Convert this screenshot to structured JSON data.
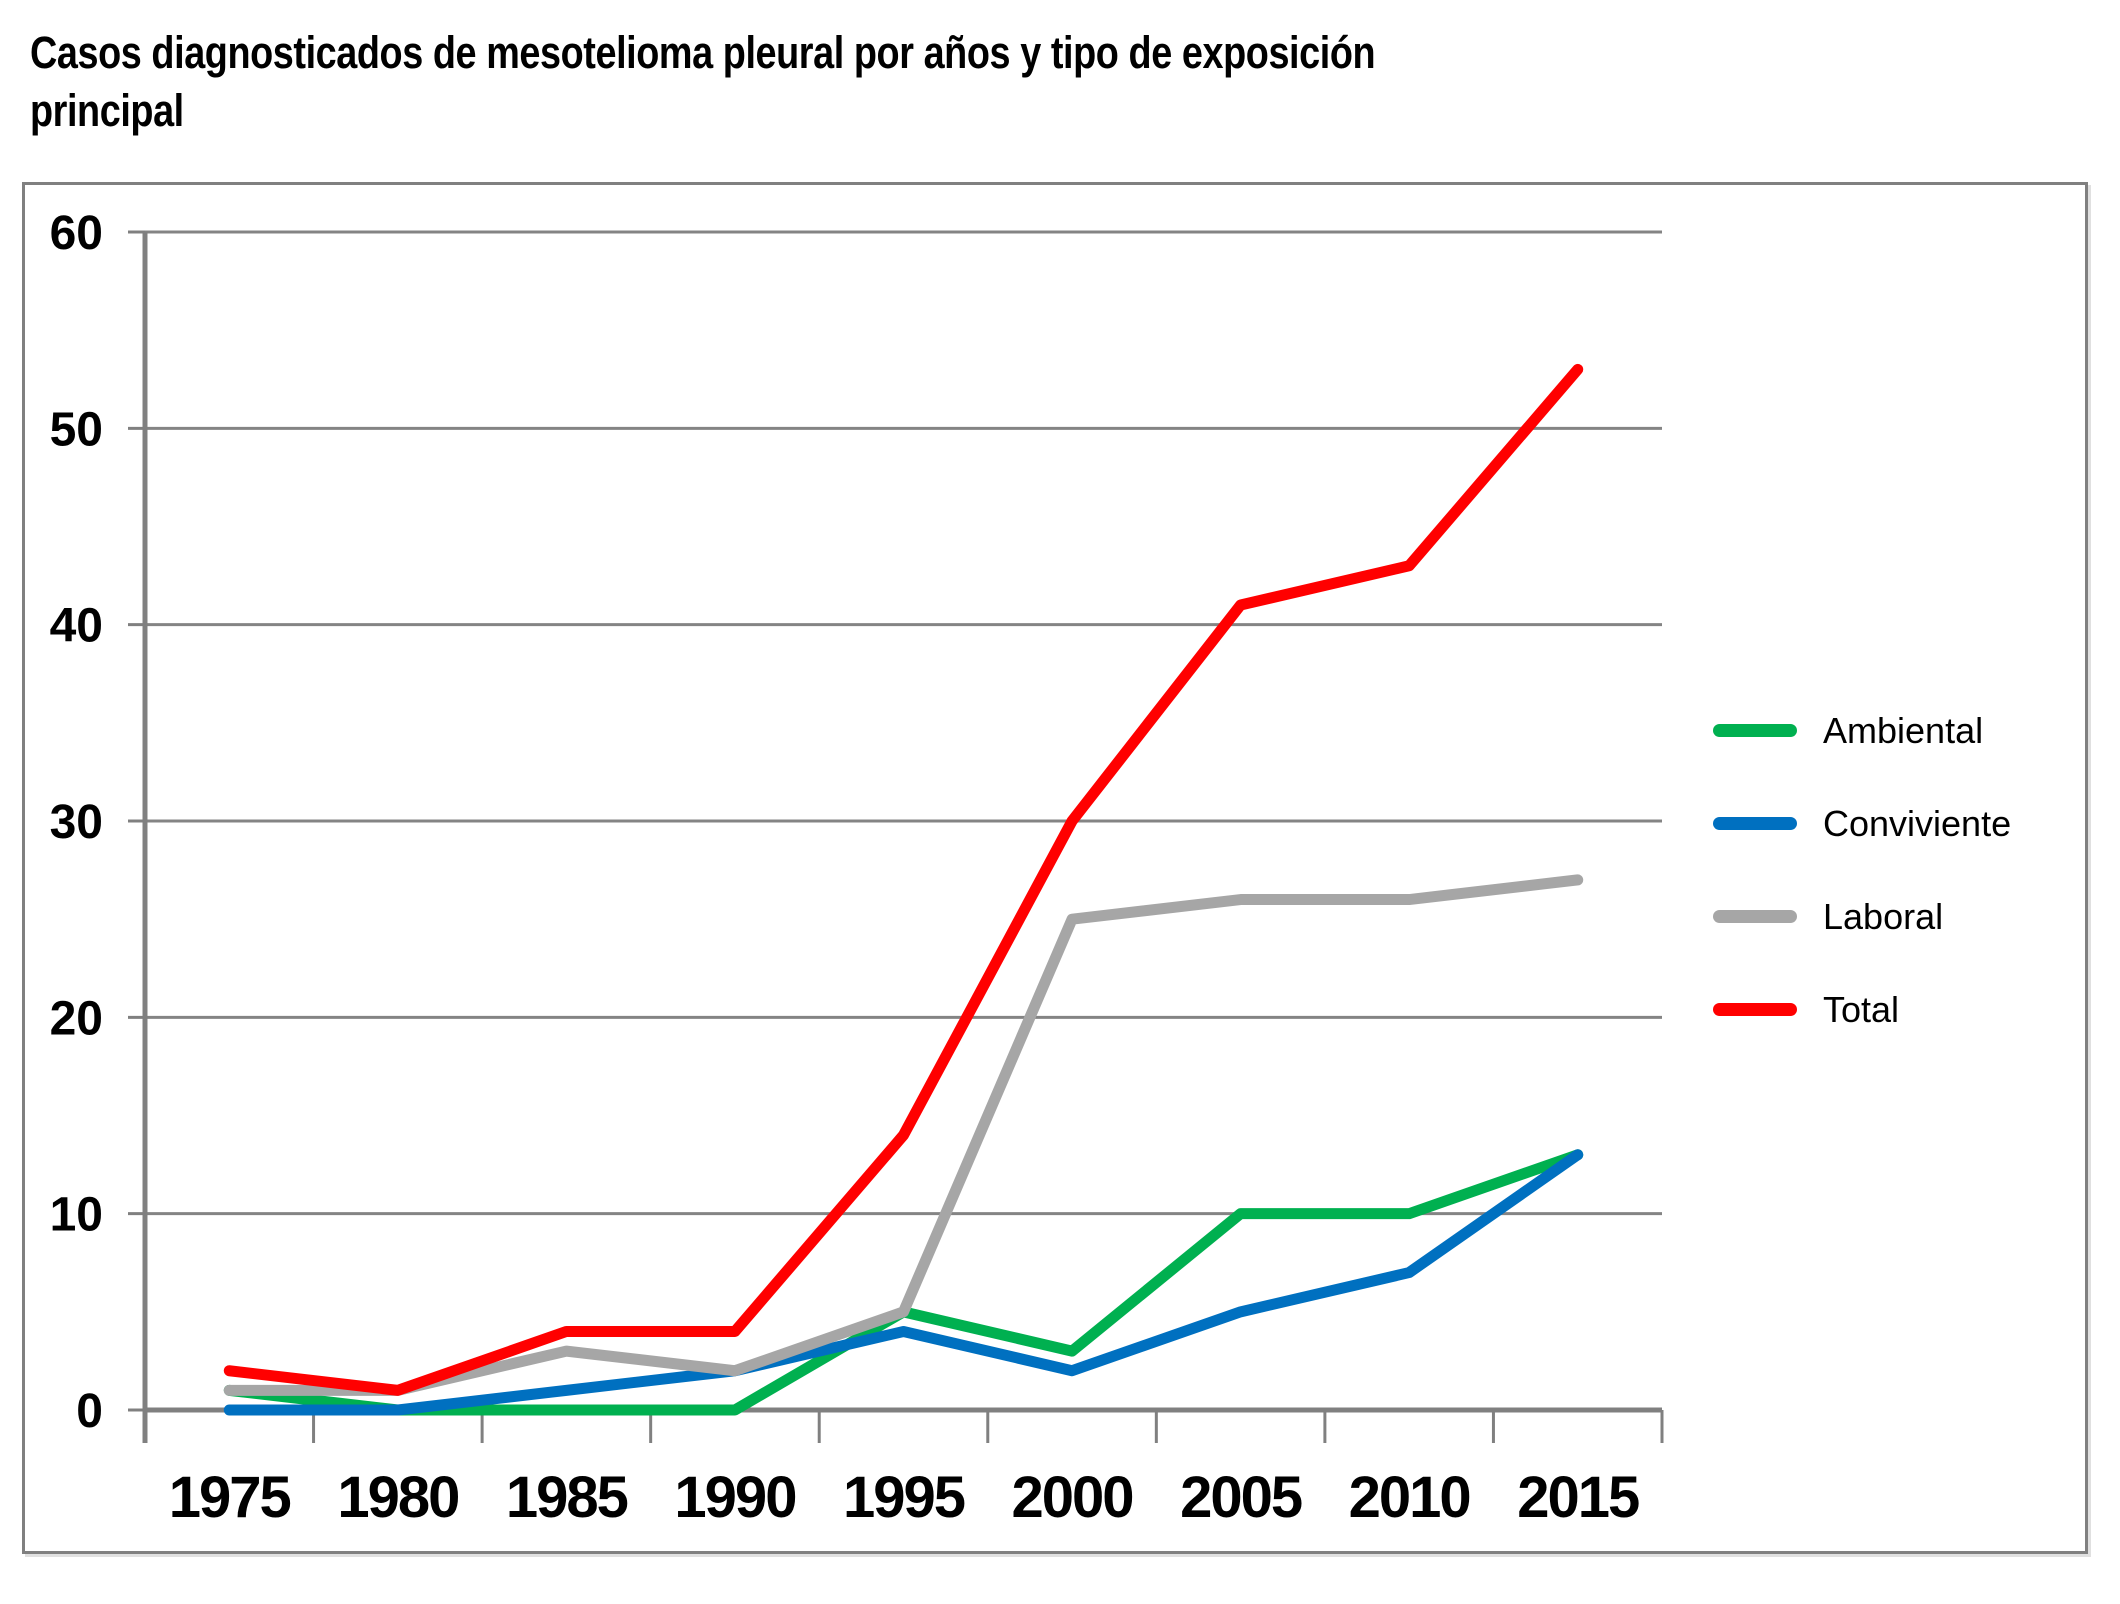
{
  "chart_data": {
    "type": "line",
    "title": "Casos diagnosticados de mesotelioma pleural por años y tipo de exposición\nprincipal",
    "categories": [
      "1975",
      "1980",
      "1985",
      "1990",
      "1995",
      "2000",
      "2005",
      "2010",
      "2015"
    ],
    "series": [
      {
        "name": "Ambiental",
        "color": "#00B050",
        "values": [
          1,
          0,
          0,
          0,
          5,
          3,
          10,
          10,
          13
        ]
      },
      {
        "name": "Conviviente",
        "color": "#0070C0",
        "values": [
          0,
          0,
          1,
          2,
          4,
          2,
          5,
          7,
          13
        ]
      },
      {
        "name": "Laboral",
        "color": "#A6A6A6",
        "values": [
          1,
          1,
          3,
          2,
          5,
          25,
          26,
          26,
          27
        ]
      },
      {
        "name": "Total",
        "color": "#FF0000",
        "values": [
          2,
          1,
          4,
          4,
          14,
          30,
          41,
          43,
          53
        ]
      }
    ],
    "ylim": [
      0,
      60
    ],
    "ytick_step": 10,
    "yticks": [
      "0",
      "10",
      "20",
      "30",
      "40",
      "50",
      "60"
    ],
    "grid": true,
    "legend_position": "right-inside",
    "axis_color": "#808080",
    "grid_color": "#848484",
    "text_color": "#000000"
  }
}
